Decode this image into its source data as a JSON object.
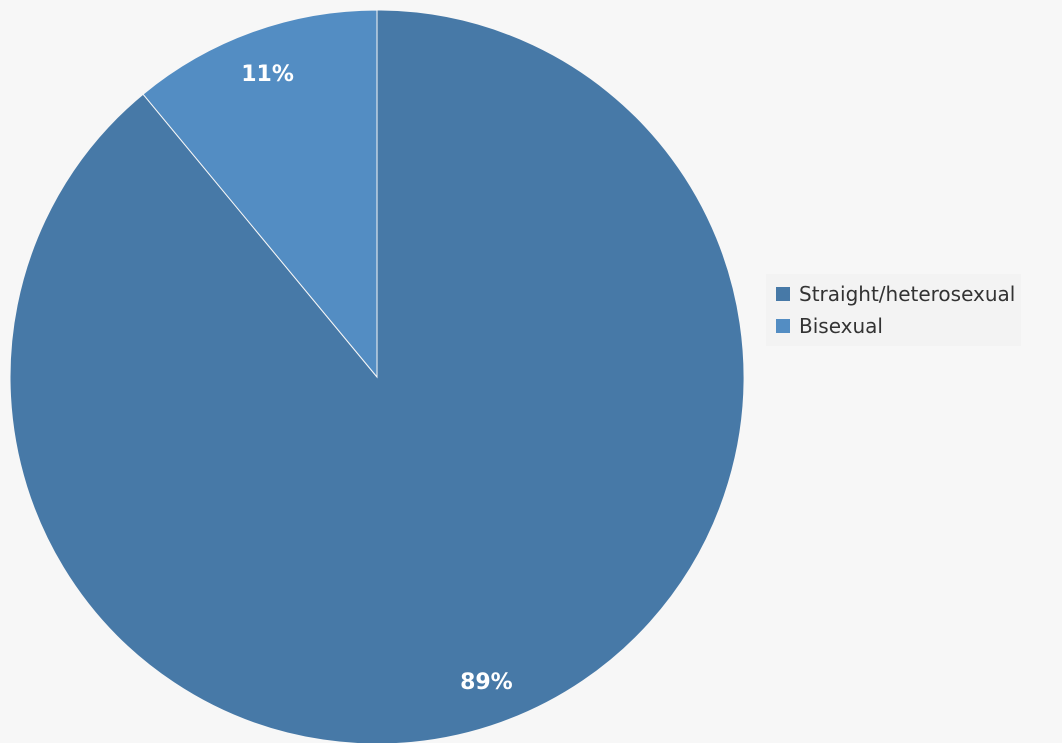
{
  "chart_data": {
    "type": "pie",
    "series": [
      {
        "name": "Straight/heterosexual",
        "value": 89,
        "label": "89%",
        "color": "#4779a7"
      },
      {
        "name": "Bisexual",
        "value": 11,
        "label": "11%",
        "color": "#538dc3"
      }
    ],
    "legend_position": "right",
    "background_color": "#f7f7f7"
  }
}
